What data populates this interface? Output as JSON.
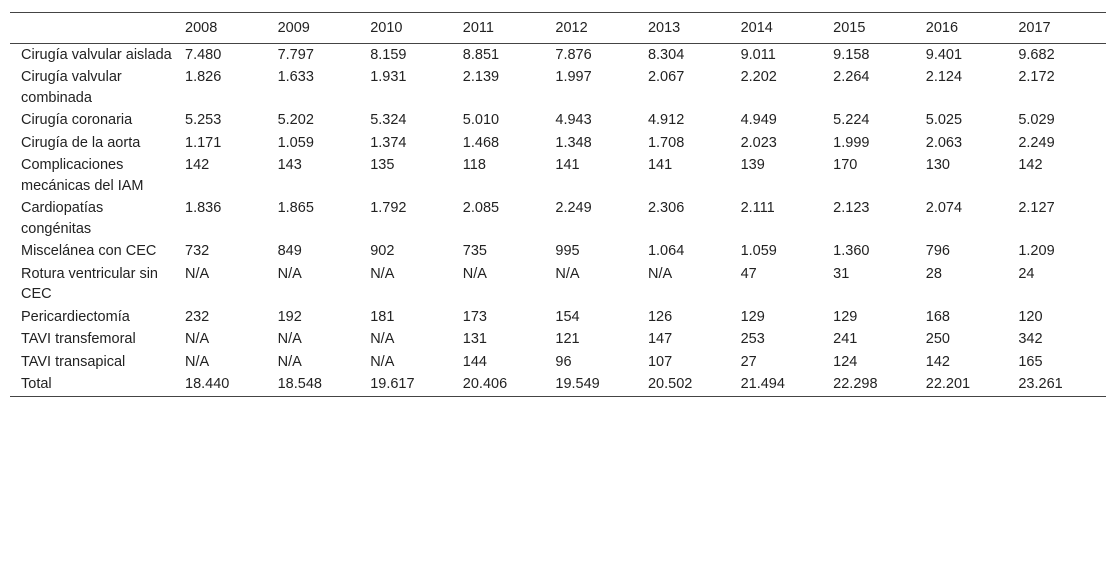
{
  "table": {
    "columns": [
      "2008",
      "2009",
      "2010",
      "2011",
      "2012",
      "2013",
      "2014",
      "2015",
      "2016",
      "2017"
    ],
    "rows": [
      {
        "label": "Cirugía valvular aislada",
        "values": [
          "7.480",
          "7.797",
          "8.159",
          "8.851",
          "7.876",
          "8.304",
          "9.011",
          "9.158",
          "9.401",
          "9.682"
        ]
      },
      {
        "label": "Cirugía valvular combinada",
        "values": [
          "1.826",
          "1.633",
          "1.931",
          "2.139",
          "1.997",
          "2.067",
          "2.202",
          "2.264",
          "2.124",
          "2.172"
        ]
      },
      {
        "label": "Cirugía coronaria",
        "values": [
          "5.253",
          "5.202",
          "5.324",
          "5.010",
          "4.943",
          "4.912",
          "4.949",
          "5.224",
          "5.025",
          "5.029"
        ]
      },
      {
        "label": "Cirugía de la aorta",
        "values": [
          "1.171",
          "1.059",
          "1.374",
          "1.468",
          "1.348",
          "1.708",
          "2.023",
          "1.999",
          "2.063",
          "2.249"
        ]
      },
      {
        "label": "Complicaciones mecánicas del IAM",
        "values": [
          "142",
          "143",
          "135",
          "118",
          "141",
          "141",
          "139",
          "170",
          "130",
          "142"
        ]
      },
      {
        "label": "Cardiopatías congénitas",
        "values": [
          "1.836",
          "1.865",
          "1.792",
          "2.085",
          "2.249",
          "2.306",
          "2.111",
          "2.123",
          "2.074",
          "2.127"
        ]
      },
      {
        "label": "Miscelánea con CEC",
        "values": [
          "732",
          "849",
          "902",
          "735",
          "995",
          "1.064",
          "1.059",
          "1.360",
          "796",
          "1.209"
        ]
      },
      {
        "label": "Rotura ventricular sin CEC",
        "values": [
          "N/A",
          "N/A",
          "N/A",
          "N/A",
          "N/A",
          "N/A",
          "47",
          "31",
          "28",
          "24"
        ]
      },
      {
        "label": "Pericardiectomía",
        "values": [
          "232",
          "192",
          "181",
          "173",
          "154",
          "126",
          "129",
          "129",
          "168",
          "120"
        ]
      },
      {
        "label": "TAVI transfemoral",
        "values": [
          "N/A",
          "N/A",
          "N/A",
          "131",
          "121",
          "147",
          "253",
          "241",
          "250",
          "342"
        ]
      },
      {
        "label": "TAVI transapical",
        "values": [
          "N/A",
          "N/A",
          "N/A",
          "144",
          "96",
          "107",
          "27",
          "124",
          "142",
          "165"
        ]
      },
      {
        "label": "Total",
        "values": [
          "18.440",
          "18.548",
          "19.617",
          "20.406",
          "19.549",
          "20.502",
          "21.494",
          "22.298",
          "22.201",
          "23.261"
        ]
      }
    ]
  }
}
